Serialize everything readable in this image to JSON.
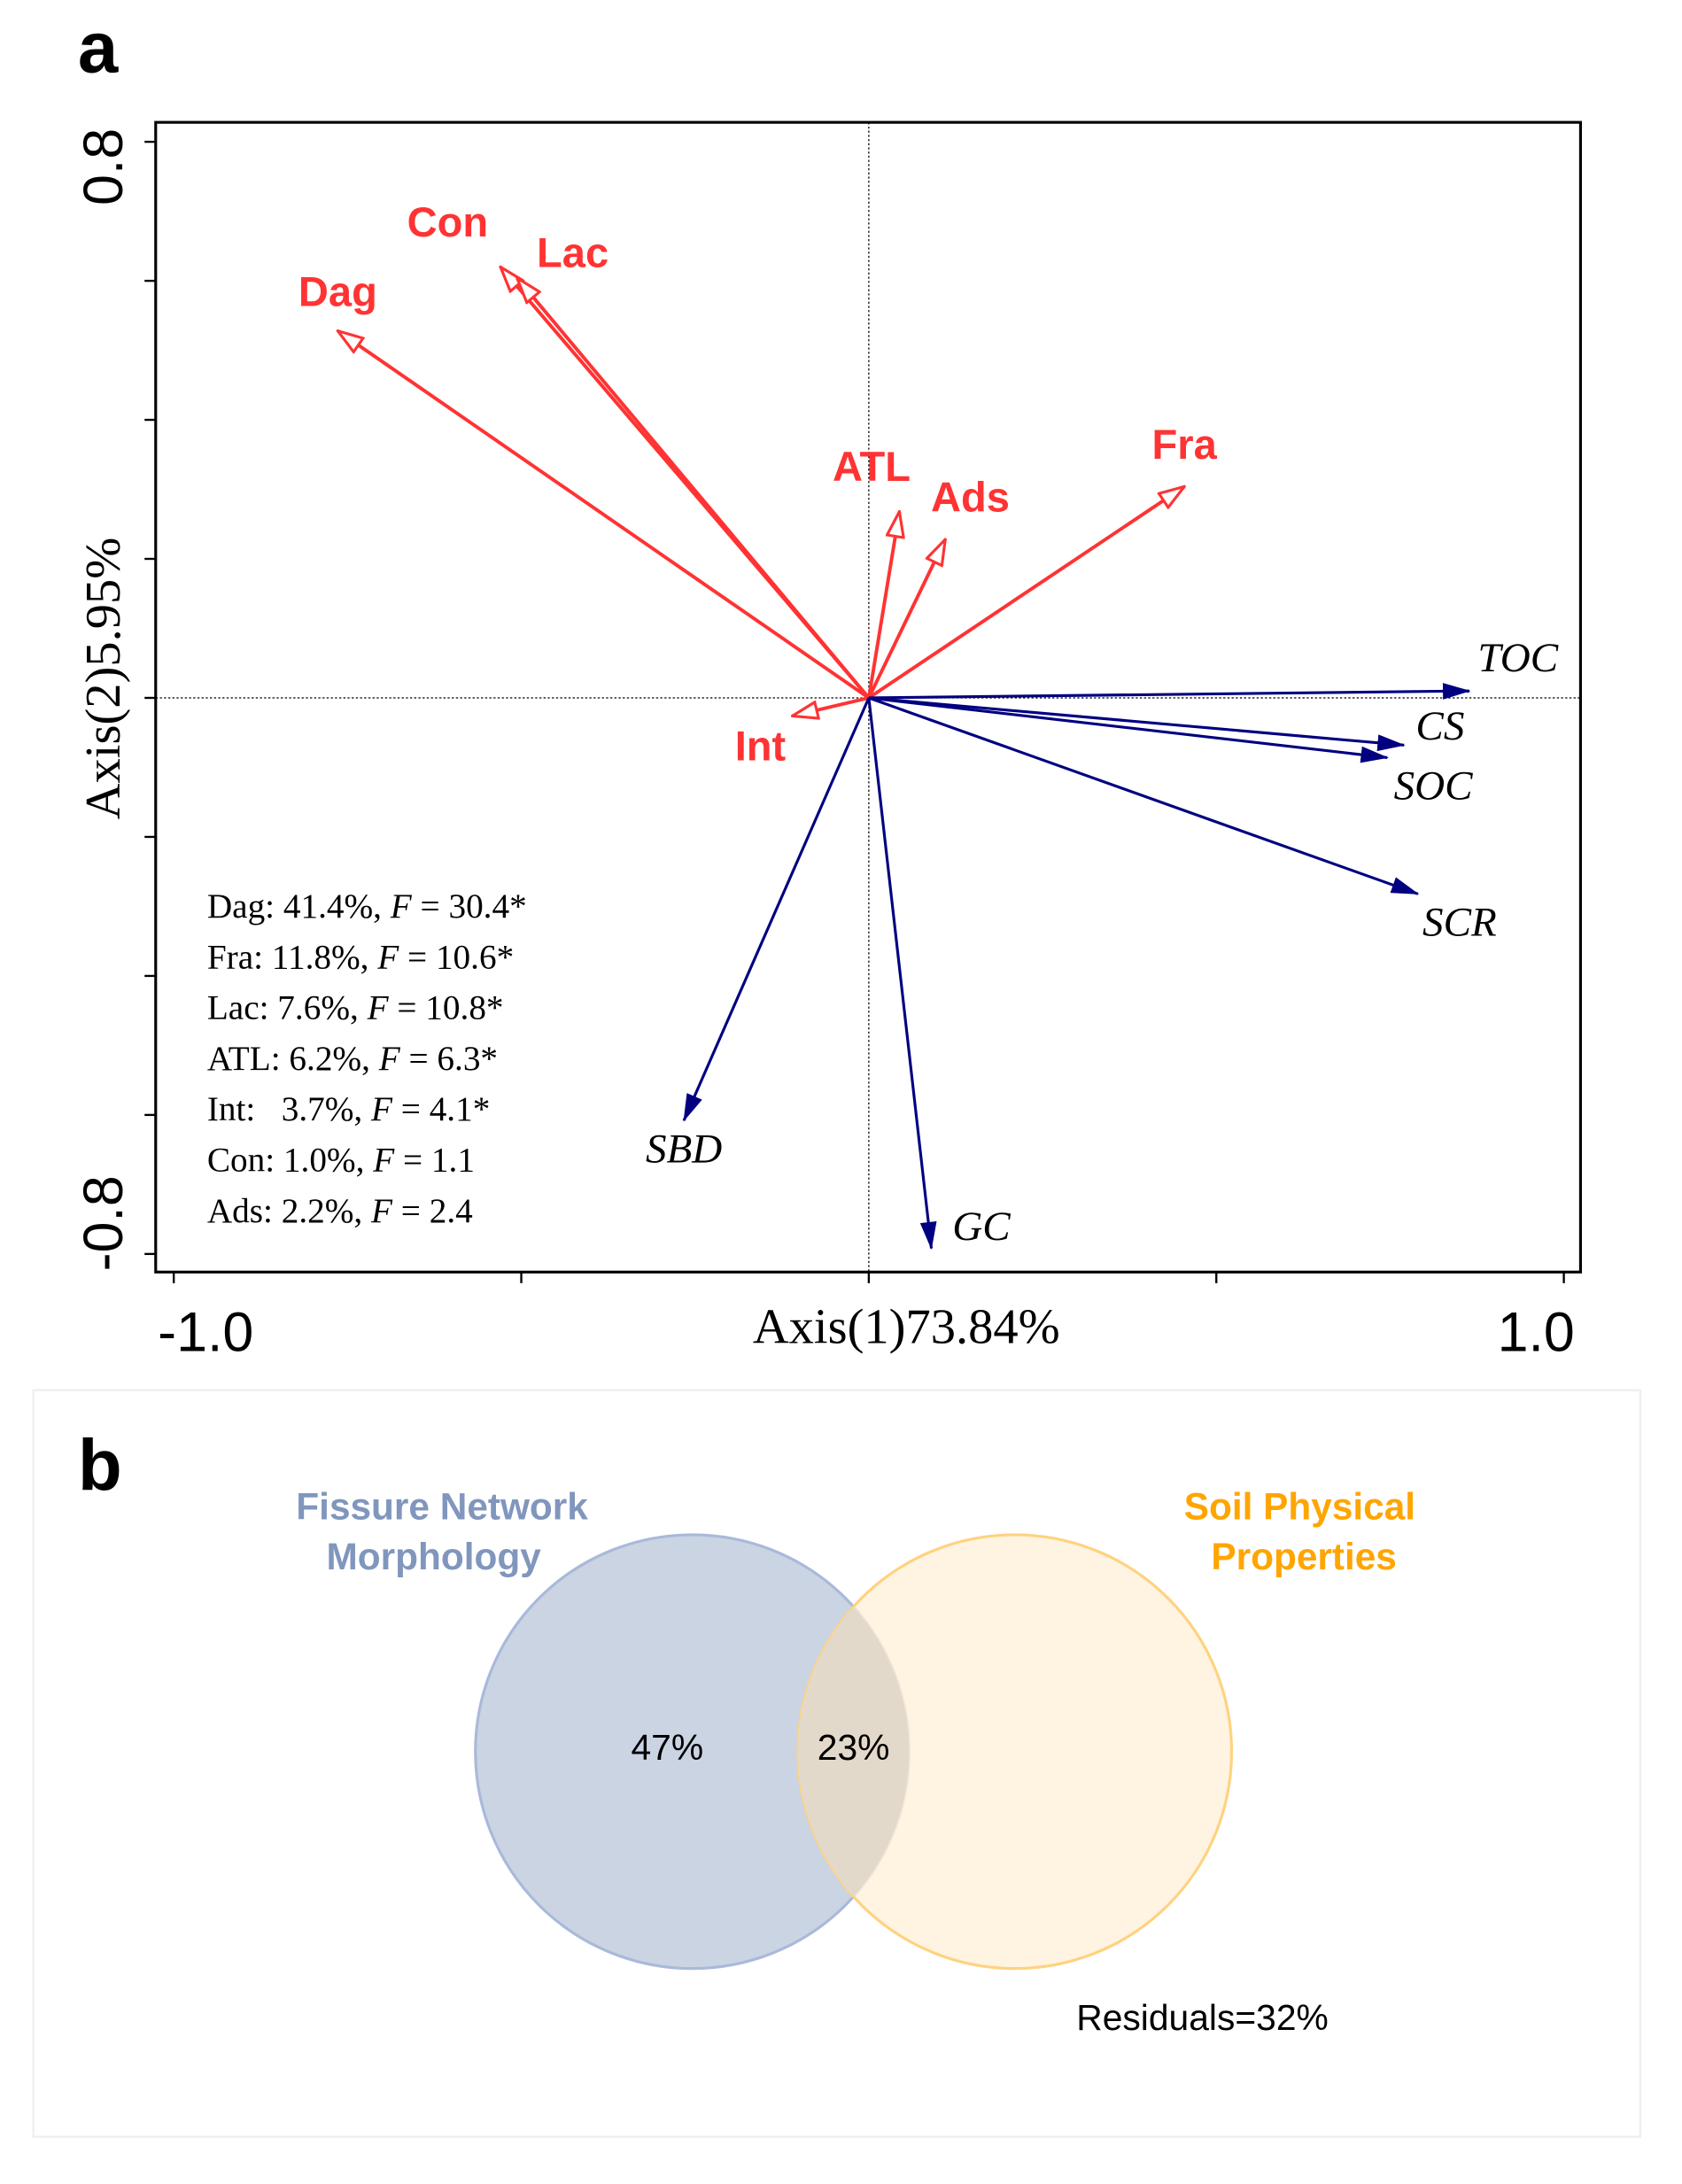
{
  "chart_data": [
    {
      "type": "biplot",
      "panel_label": "a",
      "xlabel": "Axis(1)73.84%",
      "ylabel": "Axis(2)5.95%",
      "xlim": [
        -1.0,
        1.0
      ],
      "ylim": [
        -0.8,
        0.8
      ],
      "x_tick_labels": [
        "-1.0",
        "1.0"
      ],
      "y_tick_labels": [
        "0.8",
        "-0.8"
      ],
      "colors": {
        "explanatory": "#ff3333",
        "response": "#000080"
      },
      "explanatory_vectors": [
        {
          "name": "Dag",
          "x": -0.764,
          "y": 0.528
        },
        {
          "name": "Con",
          "x": -0.53,
          "y": 0.62
        },
        {
          "name": "Lac",
          "x": -0.506,
          "y": 0.604
        },
        {
          "name": "ATL",
          "x": 0.044,
          "y": 0.268
        },
        {
          "name": "Ads",
          "x": 0.11,
          "y": 0.228
        },
        {
          "name": "Fra",
          "x": 0.454,
          "y": 0.304
        },
        {
          "name": "Int",
          "x": -0.11,
          "y": -0.026
        }
      ],
      "response_vectors": [
        {
          "name": "TOC",
          "x": 0.864,
          "y": 0.01
        },
        {
          "name": "CS",
          "x": 0.77,
          "y": -0.068
        },
        {
          "name": "SOC",
          "x": 0.746,
          "y": -0.086
        },
        {
          "name": "SCR",
          "x": 0.79,
          "y": -0.282
        },
        {
          "name": "SBD",
          "x": -0.266,
          "y": -0.608
        },
        {
          "name": "GC",
          "x": 0.09,
          "y": -0.792
        }
      ],
      "annotations": [
        {
          "prefix": "Dag: 41.4%, ",
          "f": "F",
          "suffix": " = 30.4*"
        },
        {
          "prefix": "Fra: 11.8%, ",
          "f": "F",
          "suffix": " = 10.6*"
        },
        {
          "prefix": "Lac: 7.6%, ",
          "f": "F",
          "suffix": " = 10.8*"
        },
        {
          "prefix": "ATL: 6.2%, ",
          "f": "F",
          "suffix": " = 6.3*"
        },
        {
          "prefix": "Int:   3.7%, ",
          "f": "F",
          "suffix": " = 4.1*"
        },
        {
          "prefix": "Con: 1.0%, ",
          "f": "F",
          "suffix": " = 1.1"
        },
        {
          "prefix": "Ads: 2.2%, ",
          "f": "F",
          "suffix": " = 2.4"
        }
      ]
    },
    {
      "type": "venn",
      "panel_label": "b",
      "sets": [
        {
          "name_line1": "Fissure Network",
          "name_line2": "Morphology",
          "unique": "47%",
          "color": "#8096bd",
          "fill": "#cbd4e2"
        },
        {
          "name_line1": "Soil Physical",
          "name_line2": "Properties",
          "unique": "",
          "color": "#ffa500",
          "fill": "#fff1d9"
        }
      ],
      "shared": "23%",
      "residuals": "Residuals=32%"
    }
  ]
}
